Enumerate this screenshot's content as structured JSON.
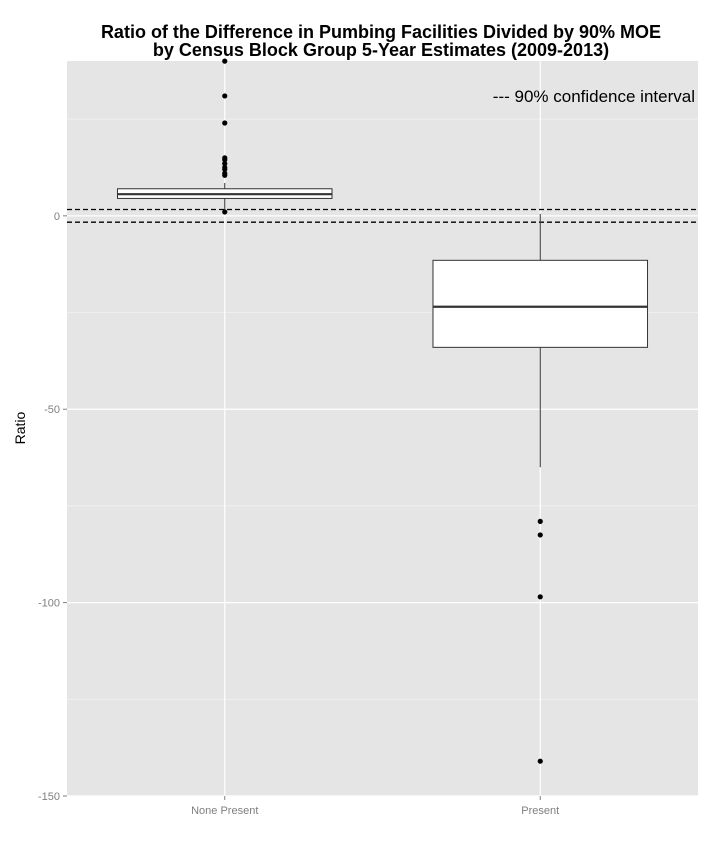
{
  "chart_data": {
    "type": "boxplot",
    "title_lines": [
      "Ratio of the Difference in Pumbing Facilities Divided by 90% MOE",
      "by Census Block Group 5-Year Estimates (2009-2013)"
    ],
    "ylabel": "Ratio",
    "xlabel": "",
    "categories": [
      "None Present",
      "Present"
    ],
    "ylim": [
      -150,
      50
    ],
    "yticks": [
      {
        "value": 0,
        "label": "0"
      },
      {
        "value": -50,
        "label": "-50"
      },
      {
        "value": -100,
        "label": "-100"
      },
      {
        "value": -150,
        "label": "-150"
      }
    ],
    "grid": true,
    "boxes": [
      {
        "category": "None Present",
        "lower_whisker": 1,
        "q1": 4.5,
        "median": 5.6,
        "q3": 7.0,
        "upper_whisker": 8.5,
        "outliers": [
          40,
          31,
          24,
          15,
          14.5,
          13.5,
          12.5,
          12,
          11,
          10.5,
          1
        ]
      },
      {
        "category": "Present",
        "lower_whisker": -65,
        "q1": -34,
        "median": -23.5,
        "q3": -11.5,
        "upper_whisker": 0.5,
        "outliers": [
          -79,
          -82.5,
          -98.5,
          -141
        ]
      }
    ],
    "reference_lines": [
      1.645,
      -1.645
    ],
    "annotation": "--- 90% confidence interval",
    "colors": {
      "panel": "#e5e5e5",
      "grid_major": "#ffffff",
      "grid_minor": "#f2f2f2",
      "box_fill": "#ffffff",
      "box_line": "#333333",
      "point": "#000000"
    }
  }
}
